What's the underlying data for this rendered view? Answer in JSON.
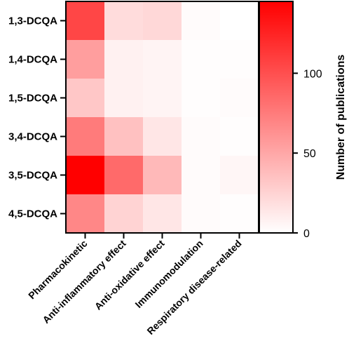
{
  "chart_data": {
    "type": "heatmap",
    "rows": [
      "1,3-DCQA",
      "1,4-DCQA",
      "1,5-DCQA",
      "3,4-DCQA",
      "3,5-DCQA",
      "4,5-DCQA"
    ],
    "columns": [
      "Pharmacokinetic",
      "Anti-inflammatory effect",
      "Anti-oxidative effect",
      "Immunomodulation",
      "Respiratory disease-related"
    ],
    "values": [
      [
        105,
        20,
        22,
        2,
        0
      ],
      [
        55,
        8,
        6,
        1,
        1
      ],
      [
        32,
        8,
        6,
        1,
        2
      ],
      [
        75,
        35,
        14,
        2,
        1
      ],
      [
        145,
        85,
        40,
        2,
        5
      ],
      [
        68,
        25,
        14,
        2,
        1
      ]
    ],
    "colorbar": {
      "title": "Number of publications",
      "range": [
        0,
        145
      ],
      "ticks": [
        0,
        50,
        100
      ],
      "color_low": "#ffffff",
      "color_high": "#ff0000"
    }
  }
}
